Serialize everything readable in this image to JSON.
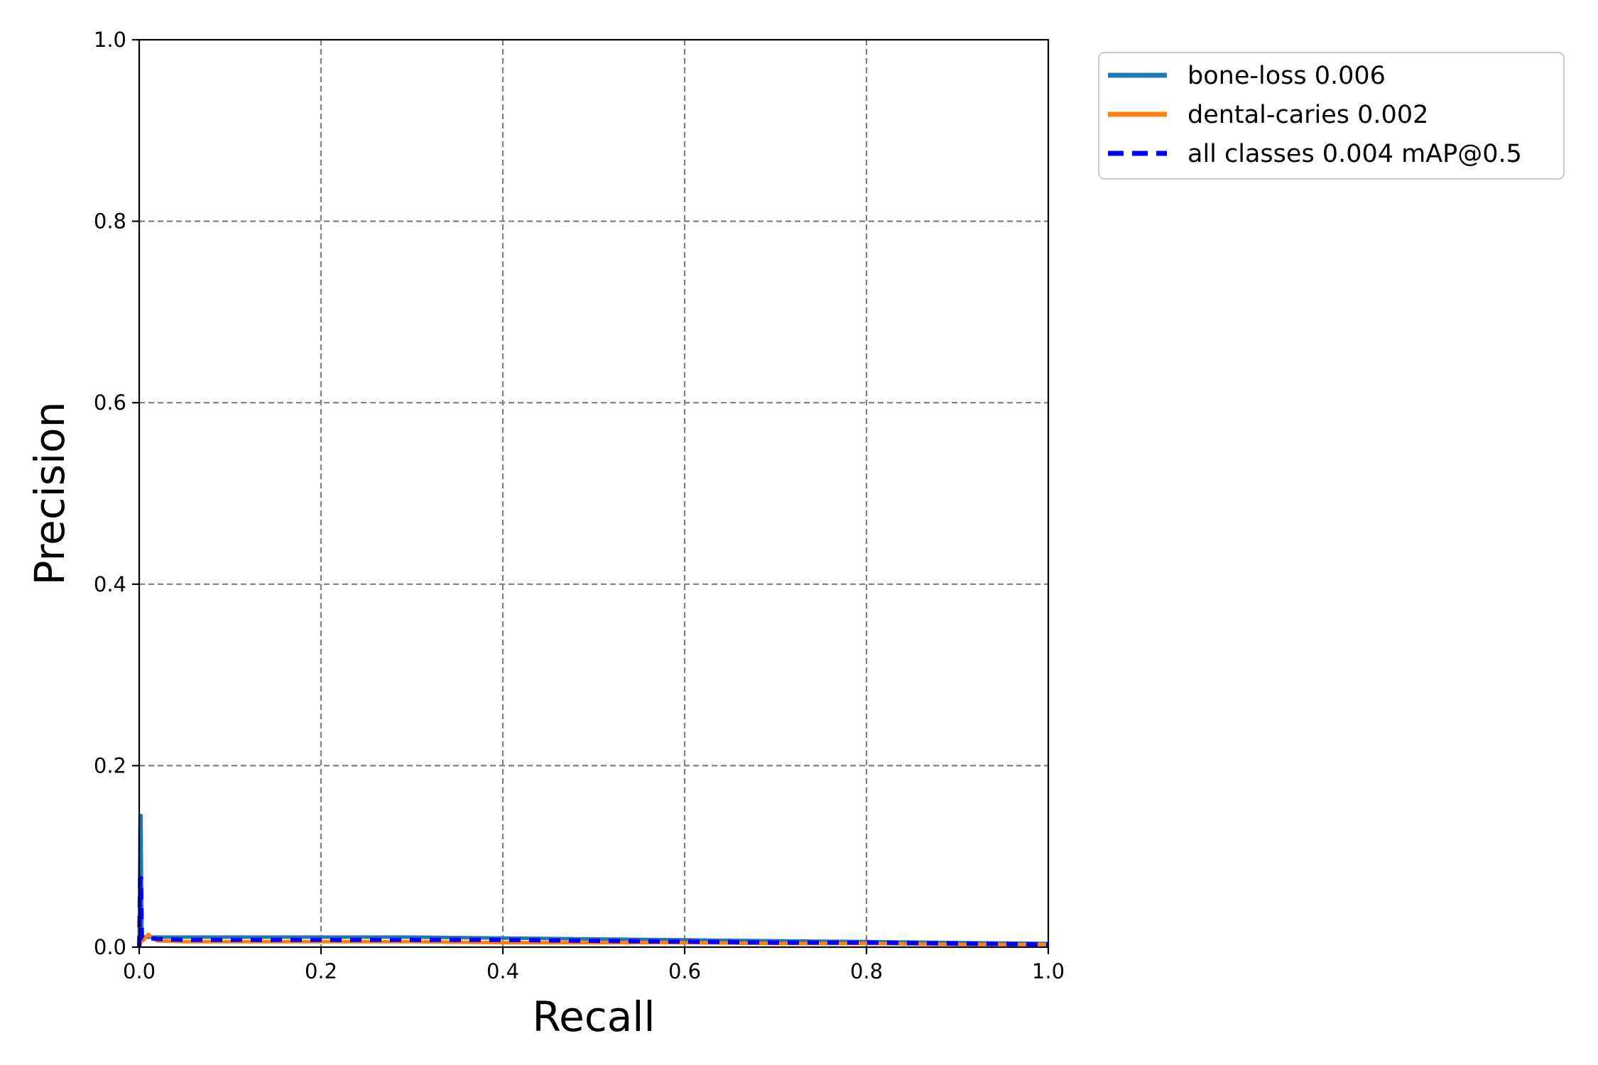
{
  "chart_data": {
    "type": "line",
    "title": "",
    "xlabel": "Recall",
    "ylabel": "Precision",
    "xlim": [
      0.0,
      1.0
    ],
    "ylim": [
      0.0,
      1.0
    ],
    "x_ticks": [
      "0.0",
      "0.2",
      "0.4",
      "0.6",
      "0.8",
      "1.0"
    ],
    "y_ticks": [
      "0.0",
      "0.2",
      "0.4",
      "0.6",
      "0.8",
      "1.0"
    ],
    "grid": true,
    "legend_position": "outside-top-right",
    "series": [
      {
        "name": "bone-loss 0.006",
        "color": "#1f77b4",
        "style": "solid",
        "x": [
          0.0,
          0.001,
          0.002,
          0.003,
          0.005,
          0.01,
          0.05,
          0.1,
          0.2,
          0.3,
          0.4,
          0.5,
          0.6,
          0.7,
          0.8,
          0.9,
          1.0
        ],
        "y": [
          0.0,
          0.145,
          0.145,
          0.012,
          0.011,
          0.011,
          0.011,
          0.011,
          0.011,
          0.011,
          0.01,
          0.009,
          0.008,
          0.007,
          0.006,
          0.005,
          0.004
        ]
      },
      {
        "name": "dental-caries 0.002",
        "color": "#ff7f0e",
        "style": "solid",
        "x": [
          0.0,
          0.002,
          0.005,
          0.01,
          0.015,
          0.02,
          0.05,
          0.1,
          0.2,
          0.3,
          0.4,
          0.5,
          0.6,
          0.7,
          0.8,
          0.9,
          1.0
        ],
        "y": [
          0.0,
          0.006,
          0.008,
          0.014,
          0.01,
          0.007,
          0.006,
          0.006,
          0.006,
          0.006,
          0.005,
          0.005,
          0.005,
          0.004,
          0.004,
          0.003,
          0.003
        ]
      },
      {
        "name": "all classes 0.004 mAP@0.5",
        "color": "#0000ff",
        "style": "dashed",
        "x": [
          0.0,
          0.001,
          0.002,
          0.003,
          0.005,
          0.01,
          0.02,
          0.05,
          0.1,
          0.2,
          0.3,
          0.4,
          0.5,
          0.6,
          0.7,
          0.8,
          0.9,
          1.0
        ],
        "y": [
          0.0,
          0.076,
          0.076,
          0.01,
          0.01,
          0.01,
          0.009,
          0.008,
          0.008,
          0.008,
          0.008,
          0.008,
          0.007,
          0.006,
          0.005,
          0.005,
          0.004,
          0.003
        ]
      }
    ]
  }
}
